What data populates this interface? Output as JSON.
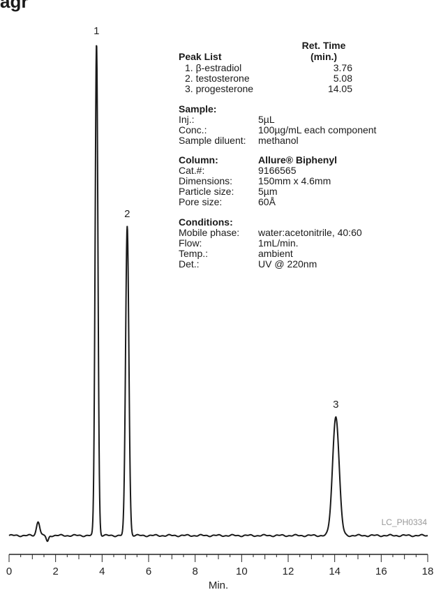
{
  "title_fragment": "agr",
  "chart_data": {
    "type": "line",
    "title": "",
    "xlabel": "Min.",
    "ylabel": "",
    "xlim": [
      0,
      18
    ],
    "x_ticks": [
      0,
      2,
      4,
      6,
      8,
      10,
      12,
      14,
      16,
      18
    ],
    "grid": false,
    "peaks": [
      {
        "label": "1",
        "x": 3.76,
        "height": 0.97,
        "width": 0.06
      },
      {
        "label": "2",
        "x": 5.08,
        "height": 0.61,
        "width": 0.07
      },
      {
        "label": "3",
        "x": 14.05,
        "height": 0.235,
        "width": 0.14
      }
    ],
    "baseline_features": [
      {
        "x": 1.25,
        "height": 0.028,
        "width": 0.07
      },
      {
        "x": 1.65,
        "height": -0.012,
        "width": 0.05
      }
    ],
    "line_color": "#1a1a1a",
    "code": "LC_PH0334"
  },
  "peak_list": {
    "heading": "Peak List",
    "ret_heading_1": "Ret. Time",
    "ret_heading_2": "(min.)",
    "items": [
      {
        "name": "1. β-estradiol",
        "time": "3.76"
      },
      {
        "name": "2. testosterone",
        "time": "5.08"
      },
      {
        "name": "3. progesterone",
        "time": "14.05"
      }
    ]
  },
  "sample": {
    "heading": "Sample:",
    "rows": [
      {
        "label": "Inj.:",
        "value": "5µL"
      },
      {
        "label": "Conc.:",
        "value": "100µg/mL each component"
      },
      {
        "label": "Sample diluent:",
        "value": "methanol"
      }
    ]
  },
  "column": {
    "heading": "Column:",
    "name": "Allure® Biphenyl",
    "rows": [
      {
        "label": "Cat.#:",
        "value": "9166565"
      },
      {
        "label": "Dimensions:",
        "value": "150mm x 4.6mm"
      },
      {
        "label": "Particle size:",
        "value": "5µm"
      },
      {
        "label": "Pore size:",
        "value": "60Å"
      }
    ]
  },
  "conditions": {
    "heading": "Conditions:",
    "rows": [
      {
        "label": "Mobile phase:",
        "value": "water:acetonitrile, 40:60"
      },
      {
        "label": "Flow:",
        "value": "1mL/min."
      },
      {
        "label": "Temp.:",
        "value": "ambient"
      },
      {
        "label": "Det.:",
        "value": "UV @ 220nm"
      }
    ]
  }
}
